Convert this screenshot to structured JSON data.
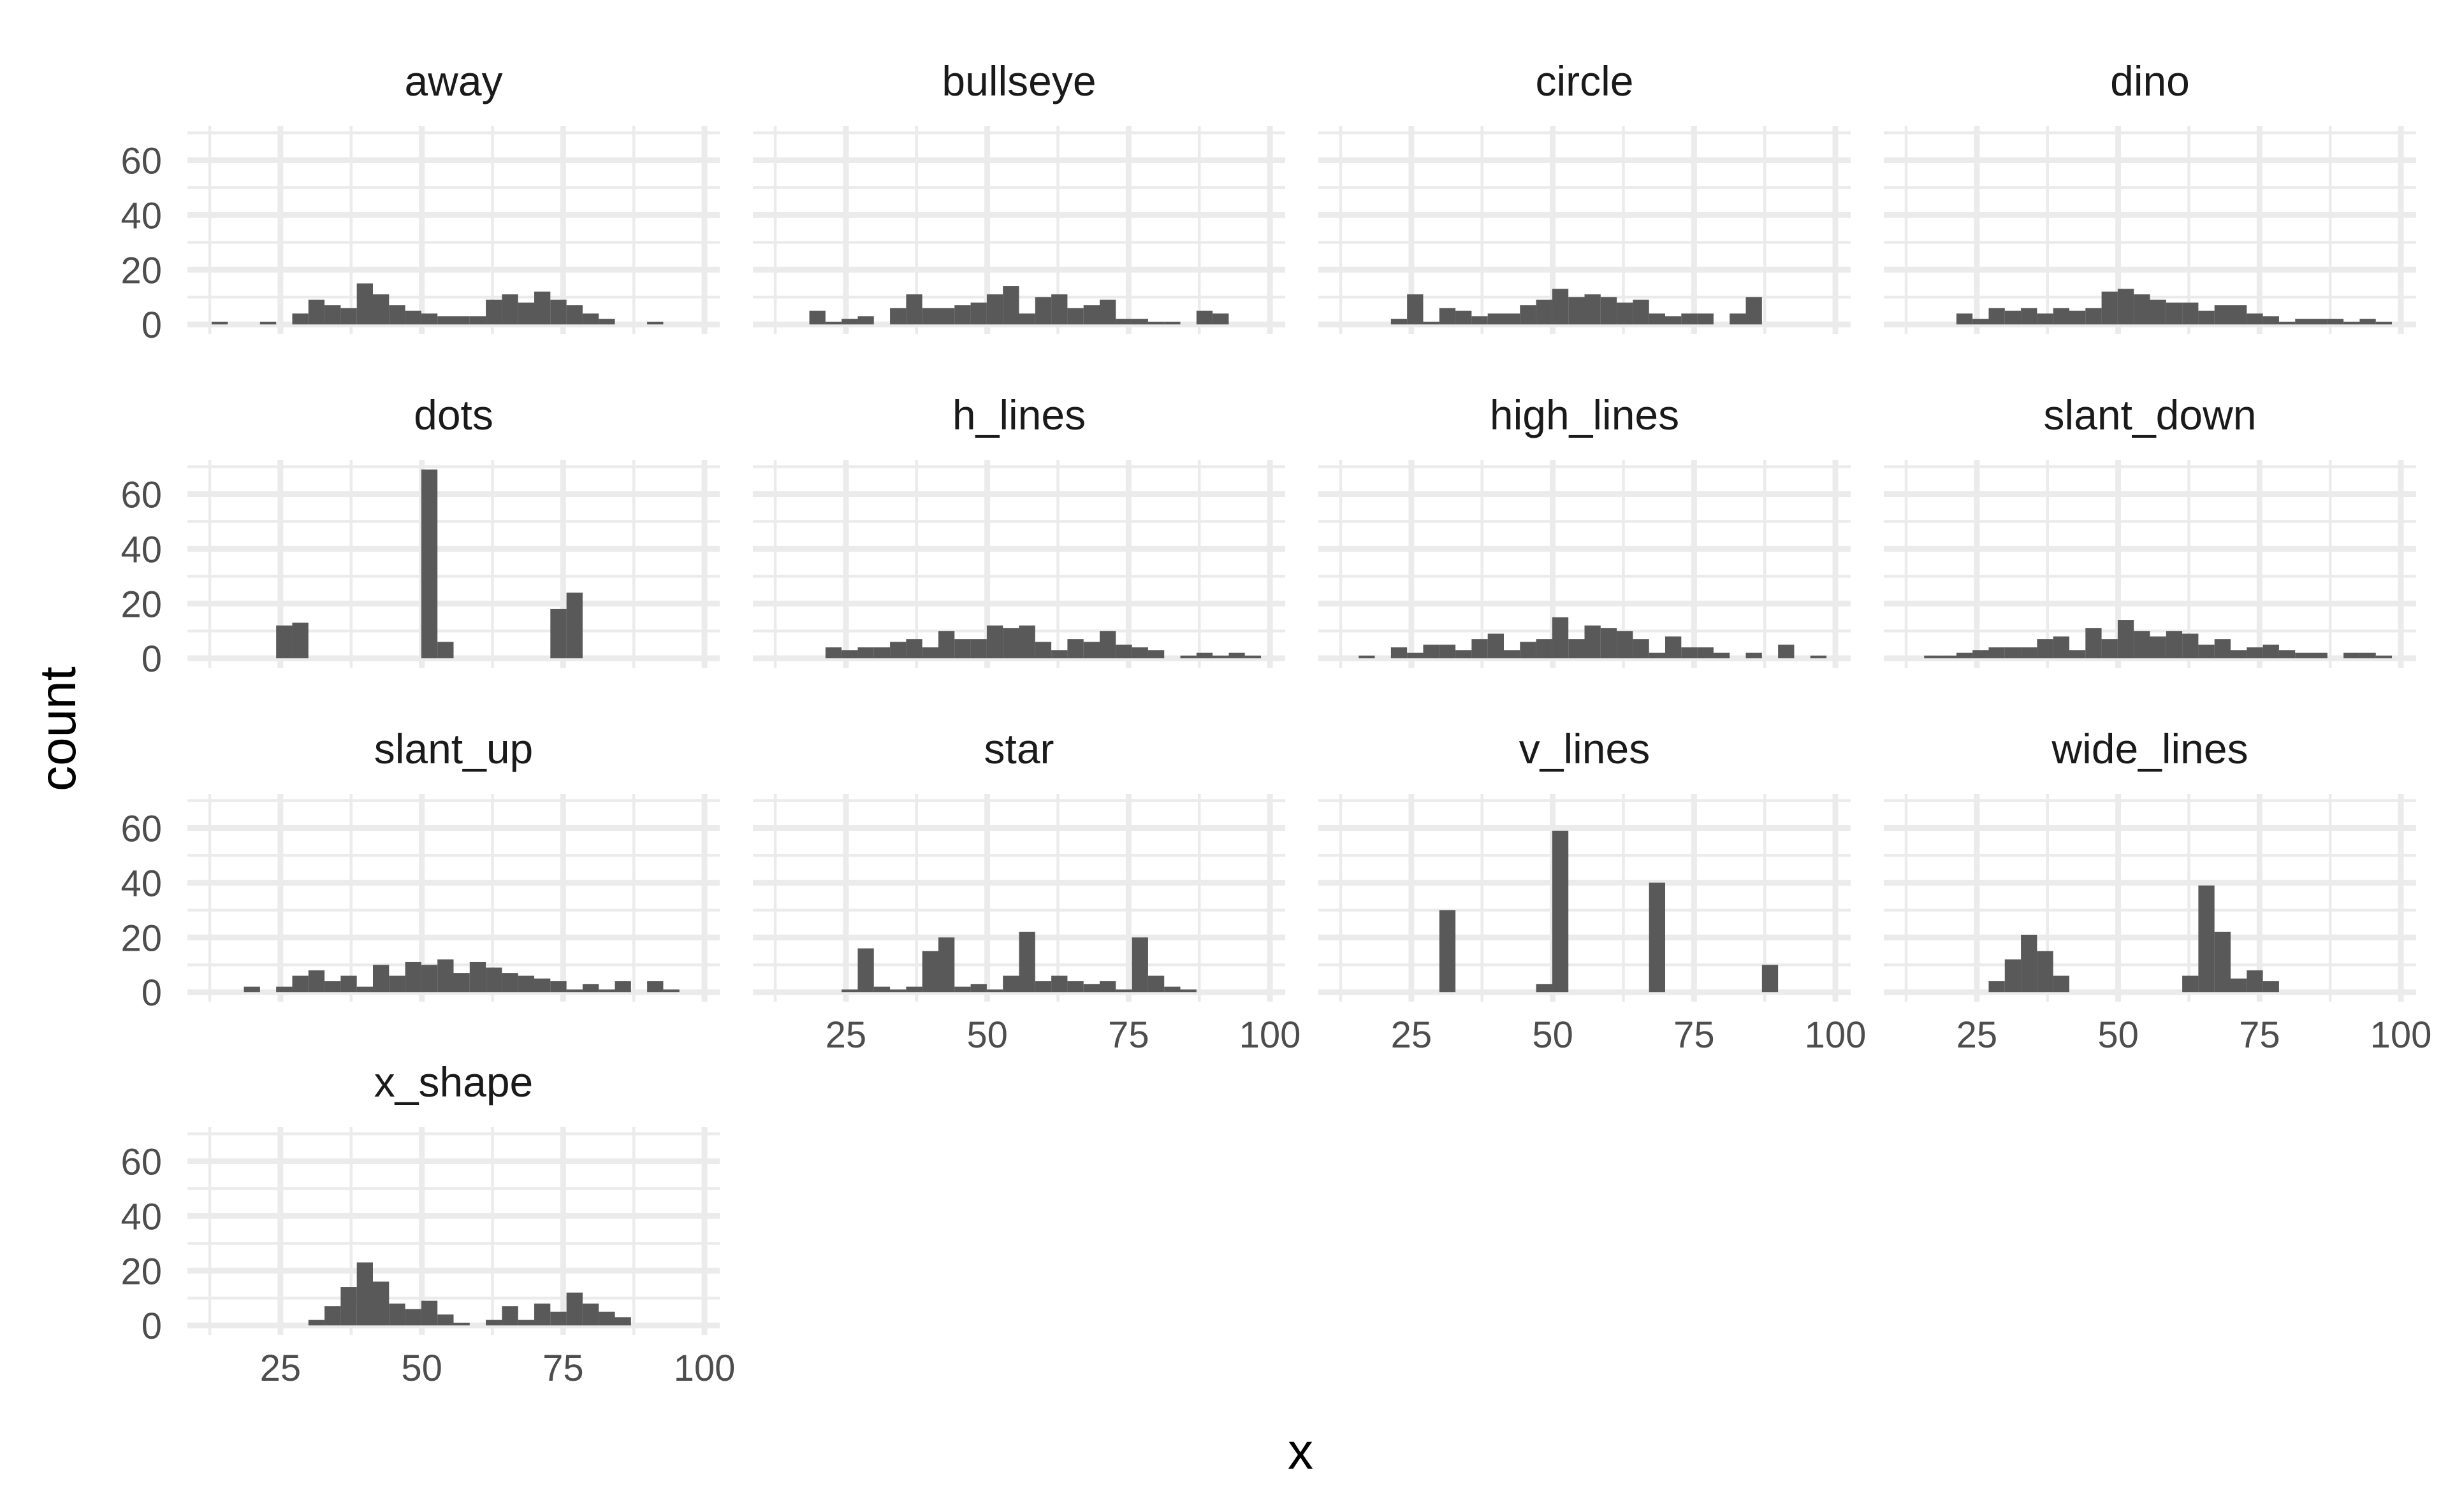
{
  "chart_data": {
    "type": "bar",
    "subtype": "faceted-histogram",
    "xlabel": "x",
    "ylabel": "count",
    "xlim": [
      8.55,
      102.7
    ],
    "ylim": [
      -3.45,
      72.45
    ],
    "x_ticks": [
      25,
      50,
      75,
      100
    ],
    "x_tick_labels": [
      "25",
      "50",
      "75",
      "100"
    ],
    "y_ticks": [
      0,
      20,
      40,
      60
    ],
    "y_tick_labels": [
      "0",
      "20",
      "40",
      "60"
    ],
    "grid": true,
    "bin_start": 12.83,
    "bin_width": 2.853,
    "bins": 30,
    "bar_color": "#595959",
    "grid_color": "#ebebeb",
    "facets": [
      {
        "name": "away",
        "counts": [
          1,
          0,
          0,
          1,
          0,
          4,
          9,
          7,
          6,
          15,
          11,
          7,
          5,
          4,
          3,
          3,
          3,
          9,
          11,
          8,
          12,
          9,
          7,
          4,
          2,
          0,
          0,
          1,
          0,
          0
        ]
      },
      {
        "name": "bullseye",
        "counts": [
          0,
          0,
          5,
          1,
          2,
          3,
          0,
          6,
          11,
          6,
          6,
          7,
          8,
          11,
          14,
          4,
          10,
          11,
          6,
          7,
          9,
          2,
          2,
          1,
          1,
          0,
          5,
          4,
          0,
          0
        ]
      },
      {
        "name": "circle",
        "counts": [
          0,
          0,
          0,
          2,
          11,
          1,
          6,
          5,
          3,
          4,
          4,
          7,
          9,
          13,
          10,
          11,
          10,
          8,
          9,
          4,
          3,
          4,
          4,
          0,
          4,
          10,
          0,
          0,
          0,
          0
        ]
      },
      {
        "name": "dino",
        "counts": [
          0,
          0,
          0,
          4,
          2,
          6,
          5,
          6,
          4,
          6,
          5,
          6,
          12,
          13,
          11,
          9,
          8,
          8,
          5,
          7,
          7,
          4,
          3,
          1,
          2,
          2,
          2,
          1,
          2,
          1
        ]
      },
      {
        "name": "dots",
        "counts": [
          0,
          0,
          0,
          0,
          12,
          13,
          0,
          0,
          0,
          0,
          0,
          0,
          0,
          69,
          6,
          0,
          0,
          0,
          0,
          0,
          0,
          18,
          24,
          0,
          0,
          0,
          0,
          0,
          0,
          0
        ]
      },
      {
        "name": "h_lines",
        "counts": [
          0,
          0,
          0,
          4,
          3,
          4,
          4,
          6,
          7,
          4,
          10,
          7,
          7,
          12,
          11,
          12,
          6,
          3,
          7,
          6,
          10,
          5,
          4,
          3,
          0,
          1,
          2,
          1,
          2,
          1
        ]
      },
      {
        "name": "high_lines",
        "counts": [
          0,
          1,
          0,
          4,
          2,
          5,
          5,
          3,
          7,
          9,
          3,
          6,
          7,
          15,
          7,
          12,
          11,
          10,
          7,
          2,
          8,
          4,
          4,
          2,
          0,
          2,
          0,
          5,
          0,
          1
        ]
      },
      {
        "name": "slant_down",
        "counts": [
          0,
          1,
          1,
          2,
          3,
          4,
          4,
          4,
          7,
          8,
          3,
          11,
          7,
          14,
          10,
          8,
          10,
          9,
          5,
          7,
          3,
          4,
          5,
          3,
          2,
          2,
          0,
          2,
          2,
          1
        ]
      },
      {
        "name": "slant_up",
        "counts": [
          0,
          0,
          2,
          0,
          2,
          6,
          8,
          4,
          6,
          2,
          10,
          6,
          11,
          10,
          12,
          7,
          11,
          9,
          7,
          6,
          5,
          4,
          1,
          3,
          1,
          4,
          0,
          4,
          1,
          0
        ]
      },
      {
        "name": "star",
        "counts": [
          0,
          0,
          0,
          0,
          1,
          16,
          2,
          1,
          2,
          15,
          20,
          2,
          3,
          1,
          6,
          22,
          4,
          6,
          4,
          3,
          4,
          1,
          20,
          6,
          2,
          1,
          0,
          0,
          0,
          0
        ]
      },
      {
        "name": "v_lines",
        "counts": [
          0,
          0,
          0,
          0,
          0,
          0,
          30,
          0,
          0,
          0,
          0,
          0,
          3,
          59,
          0,
          0,
          0,
          0,
          0,
          40,
          0,
          0,
          0,
          0,
          0,
          0,
          10,
          0,
          0,
          0
        ]
      },
      {
        "name": "wide_lines",
        "counts": [
          0,
          0,
          0,
          0,
          0,
          4,
          12,
          21,
          15,
          6,
          0,
          0,
          0,
          0,
          0,
          0,
          0,
          6,
          39,
          22,
          5,
          8,
          4,
          0,
          0,
          0,
          0,
          0,
          0,
          0
        ]
      },
      {
        "name": "x_shape",
        "counts": [
          0,
          0,
          0,
          0,
          0,
          0,
          2,
          7,
          14,
          23,
          16,
          8,
          6,
          9,
          4,
          1,
          0,
          2,
          7,
          2,
          8,
          5,
          12,
          8,
          5,
          3,
          0,
          0,
          0,
          0
        ]
      }
    ]
  }
}
